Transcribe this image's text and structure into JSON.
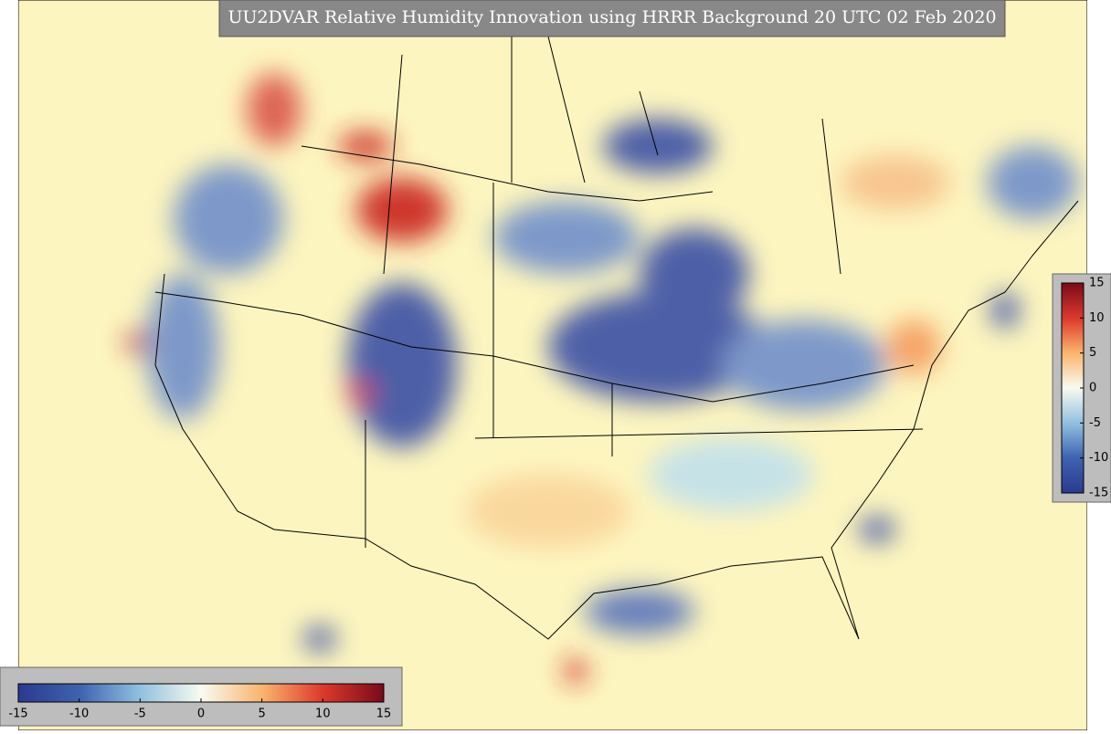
{
  "title": "UU2DVAR Relative Humidity Innovation using HRRR Background 20 UTC 02 Feb 2020",
  "colorbars": [
    {
      "ticks": [
        15,
        10,
        5,
        0,
        -5,
        -10,
        -15
      ]
    },
    {
      "ticks": [
        -15,
        -10,
        -5,
        0,
        5,
        10,
        15
      ]
    }
  ]
}
